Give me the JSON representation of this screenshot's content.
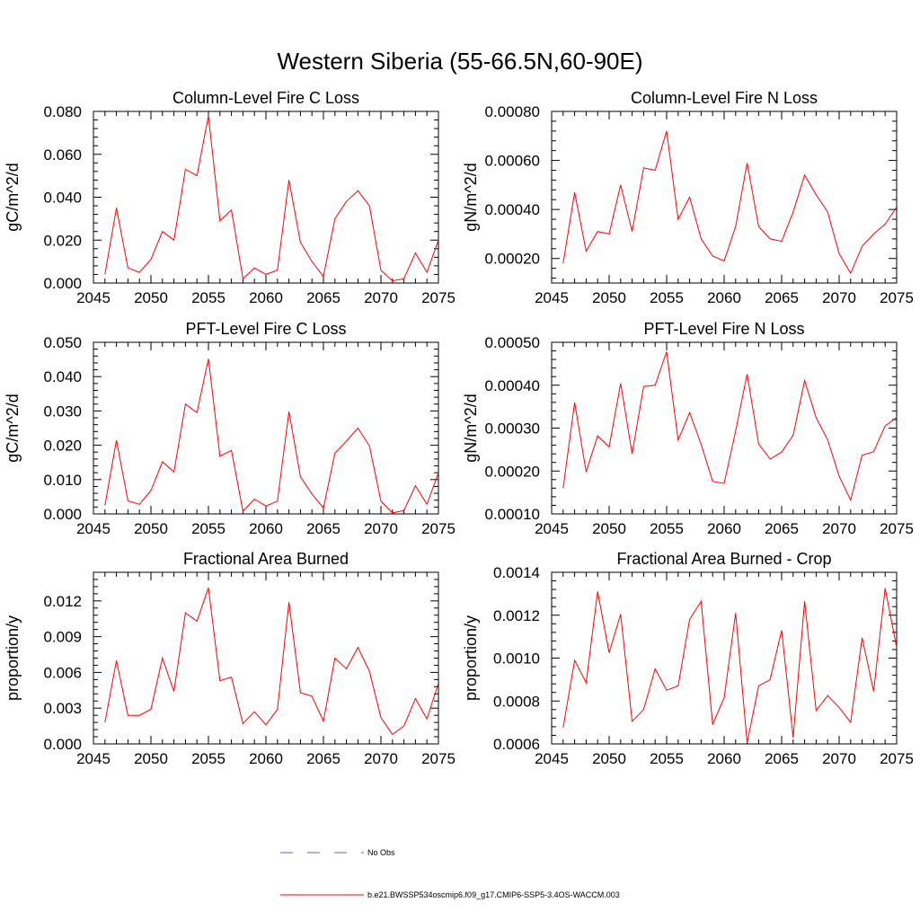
{
  "title": "Western Siberia (55-66.5N,60-90E)",
  "colors": {
    "series": "#ff0000",
    "obs": "#5566cc",
    "axis": "#000000"
  },
  "legend": {
    "obs_label": "No Obs",
    "model_label": "b.e21.BWSSP534oscmip6.f09_g17.CMIP6-SSP5-3.4OS-WACCM.003"
  },
  "chart_data": [
    {
      "type": "line",
      "title": "Column-Level Fire C Loss",
      "ylabel": "gC/m^2/d",
      "xlabel": "",
      "xlim": [
        2045,
        2075
      ],
      "xticks": [
        2045,
        2050,
        2055,
        2060,
        2065,
        2070,
        2075
      ],
      "ylim": [
        0.0,
        0.08
      ],
      "yticks": [
        0.0,
        0.02,
        0.04,
        0.06,
        0.08
      ],
      "ytick_labels": [
        "0.000",
        "0.020",
        "0.040",
        "0.060",
        "0.080"
      ],
      "x": [
        2046,
        2047,
        2048,
        2049,
        2050,
        2051,
        2052,
        2053,
        2054,
        2055,
        2056,
        2057,
        2058,
        2059,
        2060,
        2061,
        2062,
        2063,
        2064,
        2065,
        2066,
        2067,
        2068,
        2069,
        2070,
        2071,
        2072,
        2073,
        2074,
        2075
      ],
      "series": [
        {
          "name": "b.e21.BWSSP534oscmip6.f09_g17.CMIP6-SSP5-3.4OS-WACCM.003",
          "values": [
            0.004,
            0.035,
            0.007,
            0.005,
            0.011,
            0.024,
            0.02,
            0.053,
            0.05,
            0.078,
            0.029,
            0.034,
            0.002,
            0.007,
            0.004,
            0.006,
            0.048,
            0.019,
            0.01,
            0.003,
            0.03,
            0.038,
            0.043,
            0.036,
            0.006,
            0.001,
            0.002,
            0.014,
            0.005,
            0.02
          ]
        }
      ]
    },
    {
      "type": "line",
      "title": "Column-Level Fire N Loss",
      "ylabel": "gN/m^2/d",
      "xlabel": "",
      "xlim": [
        2045,
        2075
      ],
      "xticks": [
        2045,
        2050,
        2055,
        2060,
        2065,
        2070,
        2075
      ],
      "ylim": [
        0.0001,
        0.0008
      ],
      "yticks": [
        0.0002,
        0.0004,
        0.0006,
        0.0008
      ],
      "ytick_labels": [
        "0.00020",
        "0.00040",
        "0.00060",
        "0.00080"
      ],
      "x": [
        2046,
        2047,
        2048,
        2049,
        2050,
        2051,
        2052,
        2053,
        2054,
        2055,
        2056,
        2057,
        2058,
        2059,
        2060,
        2061,
        2062,
        2063,
        2064,
        2065,
        2066,
        2067,
        2068,
        2069,
        2070,
        2071,
        2072,
        2073,
        2074,
        2075
      ],
      "series": [
        {
          "name": "b.e21.BWSSP534oscmip6.f09_g17.CMIP6-SSP5-3.4OS-WACCM.003",
          "values": [
            0.00018,
            0.00047,
            0.00023,
            0.00031,
            0.0003,
            0.0005,
            0.00031,
            0.00057,
            0.00056,
            0.00072,
            0.00036,
            0.00045,
            0.00028,
            0.00021,
            0.00019,
            0.00033,
            0.00059,
            0.00033,
            0.00028,
            0.00027,
            0.00039,
            0.00054,
            0.00046,
            0.00039,
            0.00022,
            0.00014,
            0.00025,
            0.0003,
            0.00034,
            0.00041
          ]
        }
      ]
    },
    {
      "type": "line",
      "title": "PFT-Level Fire C Loss",
      "ylabel": "gC/m^2/d",
      "xlabel": "",
      "xlim": [
        2045,
        2075
      ],
      "xticks": [
        2045,
        2050,
        2055,
        2060,
        2065,
        2070,
        2075
      ],
      "ylim": [
        0.0,
        0.05
      ],
      "yticks": [
        0.0,
        0.01,
        0.02,
        0.03,
        0.04,
        0.05
      ],
      "ytick_labels": [
        "0.000",
        "0.010",
        "0.020",
        "0.030",
        "0.040",
        "0.050"
      ],
      "x": [
        2046,
        2047,
        2048,
        2049,
        2050,
        2051,
        2052,
        2053,
        2054,
        2055,
        2056,
        2057,
        2058,
        2059,
        2060,
        2061,
        2062,
        2063,
        2064,
        2065,
        2066,
        2067,
        2068,
        2069,
        2070,
        2071,
        2072,
        2073,
        2074,
        2075
      ],
      "series": [
        {
          "name": "b.e21.BWSSP534oscmip6.f09_g17.CMIP6-SSP5-3.4OS-WACCM.003",
          "values": [
            0.0025,
            0.0215,
            0.0038,
            0.0028,
            0.0068,
            0.0152,
            0.0122,
            0.032,
            0.0295,
            0.0452,
            0.0168,
            0.0185,
            0.0008,
            0.0043,
            0.0023,
            0.0037,
            0.0298,
            0.0108,
            0.0058,
            0.0017,
            0.0177,
            0.0212,
            0.025,
            0.0198,
            0.0037,
            0.0003,
            0.001,
            0.0082,
            0.0028,
            0.012
          ]
        }
      ]
    },
    {
      "type": "line",
      "title": "PFT-Level Fire N Loss",
      "ylabel": "gN/m^2/d",
      "xlabel": "",
      "xlim": [
        2045,
        2075
      ],
      "xticks": [
        2045,
        2050,
        2055,
        2060,
        2065,
        2070,
        2075
      ],
      "ylim": [
        0.0001,
        0.0005
      ],
      "yticks": [
        0.0001,
        0.0002,
        0.0003,
        0.0004,
        0.0005
      ],
      "ytick_labels": [
        "0.00010",
        "0.00020",
        "0.00030",
        "0.00040",
        "0.00050"
      ],
      "x": [
        2046,
        2047,
        2048,
        2049,
        2050,
        2051,
        2052,
        2053,
        2054,
        2055,
        2056,
        2057,
        2058,
        2059,
        2060,
        2061,
        2062,
        2063,
        2064,
        2065,
        2066,
        2067,
        2068,
        2069,
        2070,
        2071,
        2072,
        2073,
        2074,
        2075
      ],
      "series": [
        {
          "name": "b.e21.BWSSP534oscmip6.f09_g17.CMIP6-SSP5-3.4OS-WACCM.003",
          "values": [
            0.00016,
            0.00036,
            0.000198,
            0.000282,
            0.000256,
            0.000404,
            0.00024,
            0.000397,
            0.0004,
            0.000478,
            0.000272,
            0.000336,
            0.000262,
            0.000176,
            0.000171,
            0.000293,
            0.000426,
            0.000263,
            0.000228,
            0.000244,
            0.000283,
            0.000411,
            0.000324,
            0.000273,
            0.000188,
            0.000132,
            0.000237,
            0.000245,
            0.000305,
            0.000325
          ]
        }
      ]
    },
    {
      "type": "line",
      "title": "Fractional Area Burned",
      "ylabel": "proportion/y",
      "xlabel": "",
      "xlim": [
        2045,
        2075
      ],
      "xticks": [
        2045,
        2050,
        2055,
        2060,
        2065,
        2070,
        2075
      ],
      "ylim": [
        0.0,
        0.0144
      ],
      "yticks": [
        0.0,
        0.003,
        0.006,
        0.009,
        0.012
      ],
      "ytick_labels": [
        "0.000",
        "0.003",
        "0.006",
        "0.009",
        "0.012"
      ],
      "x": [
        2046,
        2047,
        2048,
        2049,
        2050,
        2051,
        2052,
        2053,
        2054,
        2055,
        2056,
        2057,
        2058,
        2059,
        2060,
        2061,
        2062,
        2063,
        2064,
        2065,
        2066,
        2067,
        2068,
        2069,
        2070,
        2071,
        2072,
        2073,
        2074,
        2075
      ],
      "series": [
        {
          "name": "b.e21.BWSSP534oscmip6.f09_g17.CMIP6-SSP5-3.4OS-WACCM.003",
          "values": [
            0.0018,
            0.007,
            0.0024,
            0.0024,
            0.0029,
            0.0072,
            0.0044,
            0.011,
            0.0103,
            0.0131,
            0.0053,
            0.0056,
            0.0017,
            0.0027,
            0.0016,
            0.0029,
            0.0119,
            0.0043,
            0.004,
            0.0019,
            0.0072,
            0.0063,
            0.0081,
            0.0061,
            0.0022,
            0.0008,
            0.0015,
            0.0038,
            0.0021,
            0.0051
          ]
        }
      ]
    },
    {
      "type": "line",
      "title": "Fractional Area Burned - Crop",
      "ylabel": "proportion/y",
      "xlabel": "",
      "xlim": [
        2045,
        2075
      ],
      "xticks": [
        2045,
        2050,
        2055,
        2060,
        2065,
        2070,
        2075
      ],
      "ylim": [
        0.0006,
        0.0014
      ],
      "yticks": [
        0.0006,
        0.0008,
        0.001,
        0.0012,
        0.0014
      ],
      "ytick_labels": [
        "0.0006",
        "0.0008",
        "0.0010",
        "0.0012",
        "0.0014"
      ],
      "x": [
        2046,
        2047,
        2048,
        2049,
        2050,
        2051,
        2052,
        2053,
        2054,
        2055,
        2056,
        2057,
        2058,
        2059,
        2060,
        2061,
        2062,
        2063,
        2064,
        2065,
        2066,
        2067,
        2068,
        2069,
        2070,
        2071,
        2072,
        2073,
        2074,
        2075
      ],
      "series": [
        {
          "name": "b.e21.BWSSP534oscmip6.f09_g17.CMIP6-SSP5-3.4OS-WACCM.003",
          "values": [
            0.000675,
            0.00099,
            0.000885,
            0.00131,
            0.001025,
            0.001205,
            0.000705,
            0.00076,
            0.00095,
            0.00085,
            0.00087,
            0.00118,
            0.001265,
            0.00069,
            0.000815,
            0.00121,
            0.000605,
            0.00087,
            0.0009,
            0.00113,
            0.00063,
            0.001265,
            0.000755,
            0.000825,
            0.00077,
            0.0007,
            0.001095,
            0.000845,
            0.001325,
            0.00105
          ]
        }
      ]
    }
  ]
}
